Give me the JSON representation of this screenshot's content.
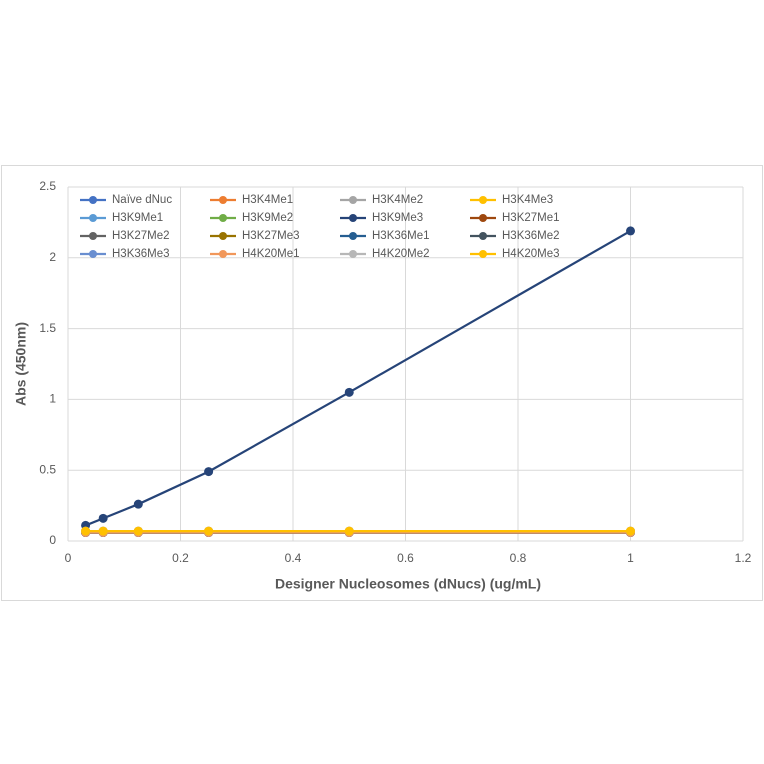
{
  "chart_data": {
    "type": "line",
    "x_label": "Designer Nucleosomes (dNucs) (ug/mL)",
    "y_label": "Abs (450nm)",
    "x": [
      0.03125,
      0.0625,
      0.125,
      0.25,
      0.5,
      1
    ],
    "xlim": [
      0,
      1.2
    ],
    "xticks": [
      0,
      0.2,
      0.4,
      0.6,
      0.8,
      1,
      1.2
    ],
    "ylim": [
      0,
      2.5
    ],
    "yticks": [
      0,
      0.5,
      1,
      1.5,
      2,
      2.5
    ],
    "grid": true,
    "series": [
      {
        "name": "Naïve dNuc",
        "color": "#4472c4",
        "values": [
          0.06,
          0.06,
          0.06,
          0.06,
          0.06,
          0.06
        ]
      },
      {
        "name": "H3K4Me1",
        "color": "#ed7d31",
        "values": [
          0.06,
          0.06,
          0.06,
          0.06,
          0.06,
          0.06
        ]
      },
      {
        "name": "H3K4Me2",
        "color": "#a5a5a5",
        "values": [
          0.07,
          0.07,
          0.07,
          0.07,
          0.07,
          0.07
        ]
      },
      {
        "name": "H3K4Me3",
        "color": "#ffc000",
        "values": [
          0.06,
          0.06,
          0.06,
          0.06,
          0.06,
          0.06
        ]
      },
      {
        "name": "H3K9Me1",
        "color": "#5b9bd5",
        "values": [
          0.06,
          0.06,
          0.06,
          0.06,
          0.06,
          0.06
        ]
      },
      {
        "name": "H3K9Me2",
        "color": "#70ad47",
        "values": [
          0.06,
          0.06,
          0.06,
          0.06,
          0.06,
          0.06
        ]
      },
      {
        "name": "H3K9Me3",
        "color": "#264478",
        "values": [
          0.11,
          0.16,
          0.26,
          0.49,
          1.05,
          2.19
        ]
      },
      {
        "name": "H3K27Me1",
        "color": "#9e480e",
        "values": [
          0.06,
          0.06,
          0.06,
          0.06,
          0.06,
          0.06
        ]
      },
      {
        "name": "H3K27Me2",
        "color": "#636363",
        "values": [
          0.06,
          0.06,
          0.06,
          0.06,
          0.06,
          0.06
        ]
      },
      {
        "name": "H3K27Me3",
        "color": "#997300",
        "values": [
          0.06,
          0.06,
          0.06,
          0.06,
          0.06,
          0.06
        ]
      },
      {
        "name": "H3K36Me1",
        "color": "#255e91",
        "values": [
          0.06,
          0.06,
          0.06,
          0.06,
          0.06,
          0.06
        ]
      },
      {
        "name": "H3K36Me2",
        "color": "#43535f",
        "values": [
          0.06,
          0.06,
          0.06,
          0.06,
          0.06,
          0.06
        ]
      },
      {
        "name": "H3K36Me3",
        "color": "#698ed0",
        "values": [
          0.06,
          0.06,
          0.06,
          0.06,
          0.06,
          0.06
        ]
      },
      {
        "name": "H4K20Me1",
        "color": "#f1975a",
        "values": [
          0.06,
          0.06,
          0.06,
          0.06,
          0.06,
          0.06
        ]
      },
      {
        "name": "H4K20Me2",
        "color": "#b7b7b7",
        "values": [
          0.07,
          0.07,
          0.07,
          0.07,
          0.07,
          0.07
        ]
      },
      {
        "name": "H4K20Me3",
        "color": "#ffc000",
        "values": [
          0.07,
          0.07,
          0.07,
          0.07,
          0.07,
          0.07
        ]
      }
    ]
  }
}
